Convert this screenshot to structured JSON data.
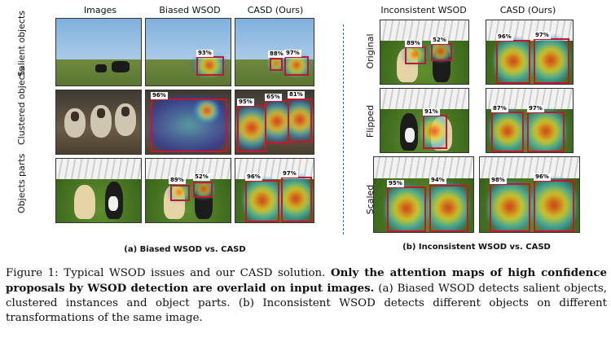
{
  "left": {
    "headers": [
      "Images",
      "Biased WSOD",
      "CASD (Ours)"
    ],
    "rows": [
      "Salient objects",
      "Clustered objects",
      "Objects parts"
    ],
    "scores": {
      "salient_biased": [
        "93%"
      ],
      "salient_casd": [
        "88%",
        "97%"
      ],
      "clustered_biased": [
        "96%"
      ],
      "clustered_casd": [
        "95%",
        "65%",
        "81%"
      ],
      "parts_biased": [
        "89%",
        "52%"
      ],
      "parts_casd": [
        "96%",
        "97%"
      ]
    },
    "subcaption": "(a) Biased WSOD vs. CASD"
  },
  "right": {
    "headers": [
      "Inconsistent WSOD",
      "CASD (Ours)"
    ],
    "rows": [
      "Original",
      "Flipped",
      "Scaled"
    ],
    "scores": {
      "original_incons": [
        "89%",
        "52%"
      ],
      "original_casd": [
        "96%",
        "97%"
      ],
      "flipped_incons": [
        "91%"
      ],
      "flipped_casd": [
        "87%",
        "97%"
      ],
      "scaled_incons": [
        "95%",
        "94%"
      ],
      "scaled_casd": [
        "98%",
        "96%"
      ]
    },
    "subcaption": "(b) Inconsistent WSOD vs. CASD"
  },
  "caption": {
    "lead": "Figure 1: Typical WSOD issues and our CASD solution. ",
    "bold": "Only the attention maps of high confidence proposals by WSOD detection are overlaid on input images.",
    "rest": " (a) Biased WSOD detects salient objects, clustered instances and object parts. (b) Inconsistent WSOD detects different objects on different transformations of the same image."
  }
}
